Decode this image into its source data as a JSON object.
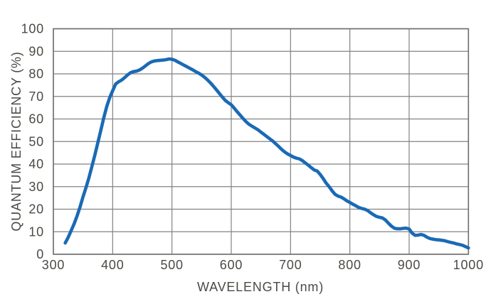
{
  "chart_data": {
    "type": "line",
    "title": "",
    "xlabel": "WAVELENGTH (nm)",
    "ylabel": "QUANTUM EFFICIENCY (%)",
    "xlim": [
      300,
      1000
    ],
    "ylim": [
      0,
      100
    ],
    "x_ticks": [
      300,
      400,
      500,
      600,
      700,
      800,
      900,
      1000
    ],
    "y_ticks": [
      0,
      10,
      20,
      30,
      40,
      50,
      60,
      70,
      80,
      90,
      100
    ],
    "grid": true,
    "legend": "none",
    "colors": {
      "line": "#1a6ab5",
      "grid": "#828282",
      "border": "#6e6e6e",
      "text": "#4d4a45",
      "background": "#ffffff"
    },
    "series": [
      {
        "name": "Quantum Efficiency",
        "points": [
          [
            320,
            5
          ],
          [
            325,
            7.5
          ],
          [
            330,
            10.5
          ],
          [
            335,
            13.5
          ],
          [
            340,
            17
          ],
          [
            345,
            21
          ],
          [
            350,
            25.5
          ],
          [
            355,
            29.5
          ],
          [
            360,
            34
          ],
          [
            365,
            39
          ],
          [
            370,
            44
          ],
          [
            375,
            49.5
          ],
          [
            380,
            55
          ],
          [
            385,
            60.5
          ],
          [
            390,
            65.5
          ],
          [
            395,
            69.5
          ],
          [
            400,
            72.5
          ],
          [
            405,
            75.5
          ],
          [
            410,
            76.5
          ],
          [
            415,
            77.2
          ],
          [
            420,
            78.3
          ],
          [
            425,
            79.5
          ],
          [
            430,
            80.5
          ],
          [
            435,
            81
          ],
          [
            440,
            81.2
          ],
          [
            445,
            81.7
          ],
          [
            450,
            82.5
          ],
          [
            455,
            83.5
          ],
          [
            460,
            84.5
          ],
          [
            465,
            85.3
          ],
          [
            470,
            85.7
          ],
          [
            475,
            85.9
          ],
          [
            480,
            86
          ],
          [
            485,
            86.1
          ],
          [
            490,
            86.3
          ],
          [
            495,
            86.6
          ],
          [
            500,
            86.5
          ],
          [
            505,
            86
          ],
          [
            510,
            85.3
          ],
          [
            515,
            84.6
          ],
          [
            520,
            83.9
          ],
          [
            525,
            83.2
          ],
          [
            530,
            82.5
          ],
          [
            535,
            81.8
          ],
          [
            540,
            81
          ],
          [
            545,
            80.3
          ],
          [
            550,
            79.5
          ],
          [
            555,
            78.5
          ],
          [
            560,
            77.3
          ],
          [
            565,
            76
          ],
          [
            570,
            74.5
          ],
          [
            575,
            72.9
          ],
          [
            580,
            71.3
          ],
          [
            585,
            69.7
          ],
          [
            590,
            68.2
          ],
          [
            595,
            67.2
          ],
          [
            600,
            66.3
          ],
          [
            605,
            64.8
          ],
          [
            610,
            63.2
          ],
          [
            615,
            61.7
          ],
          [
            620,
            60.2
          ],
          [
            625,
            58.8
          ],
          [
            630,
            57.6
          ],
          [
            635,
            56.8
          ],
          [
            640,
            56
          ],
          [
            645,
            55.2
          ],
          [
            650,
            54.2
          ],
          [
            655,
            53.2
          ],
          [
            660,
            52.2
          ],
          [
            665,
            51.2
          ],
          [
            670,
            50.2
          ],
          [
            675,
            49
          ],
          [
            680,
            47.8
          ],
          [
            685,
            46.5
          ],
          [
            690,
            45.4
          ],
          [
            695,
            44.5
          ],
          [
            700,
            43.8
          ],
          [
            705,
            43.1
          ],
          [
            710,
            42.6
          ],
          [
            715,
            42.3
          ],
          [
            720,
            41.5
          ],
          [
            725,
            40.5
          ],
          [
            730,
            39.5
          ],
          [
            735,
            38.4
          ],
          [
            740,
            37.4
          ],
          [
            745,
            36.9
          ],
          [
            750,
            35.4
          ],
          [
            755,
            33.6
          ],
          [
            760,
            31.6
          ],
          [
            765,
            30
          ],
          [
            770,
            28.2
          ],
          [
            775,
            26.6
          ],
          [
            780,
            25.8
          ],
          [
            785,
            25.4
          ],
          [
            790,
            24.6
          ],
          [
            795,
            23.7
          ],
          [
            800,
            23
          ],
          [
            805,
            22.2
          ],
          [
            810,
            21.5
          ],
          [
            815,
            20.8
          ],
          [
            820,
            20.3
          ],
          [
            825,
            20
          ],
          [
            830,
            19.4
          ],
          [
            835,
            18.4
          ],
          [
            840,
            17.5
          ],
          [
            845,
            16.8
          ],
          [
            850,
            16.4
          ],
          [
            855,
            16.1
          ],
          [
            860,
            15.2
          ],
          [
            865,
            13.8
          ],
          [
            870,
            12.5
          ],
          [
            875,
            11.6
          ],
          [
            880,
            11.3
          ],
          [
            885,
            11.3
          ],
          [
            890,
            11.5
          ],
          [
            895,
            11.6
          ],
          [
            900,
            11.2
          ],
          [
            905,
            9.4
          ],
          [
            910,
            8.4
          ],
          [
            915,
            8.5
          ],
          [
            920,
            8.8
          ],
          [
            925,
            8.4
          ],
          [
            930,
            7.6
          ],
          [
            935,
            7
          ],
          [
            940,
            6.7
          ],
          [
            945,
            6.5
          ],
          [
            950,
            6.4
          ],
          [
            955,
            6.2
          ],
          [
            960,
            6
          ],
          [
            965,
            5.6
          ],
          [
            970,
            5.3
          ],
          [
            975,
            5
          ],
          [
            980,
            4.6
          ],
          [
            985,
            4.3
          ],
          [
            990,
            4
          ],
          [
            995,
            3.4
          ],
          [
            1000,
            2.8
          ]
        ]
      }
    ]
  }
}
